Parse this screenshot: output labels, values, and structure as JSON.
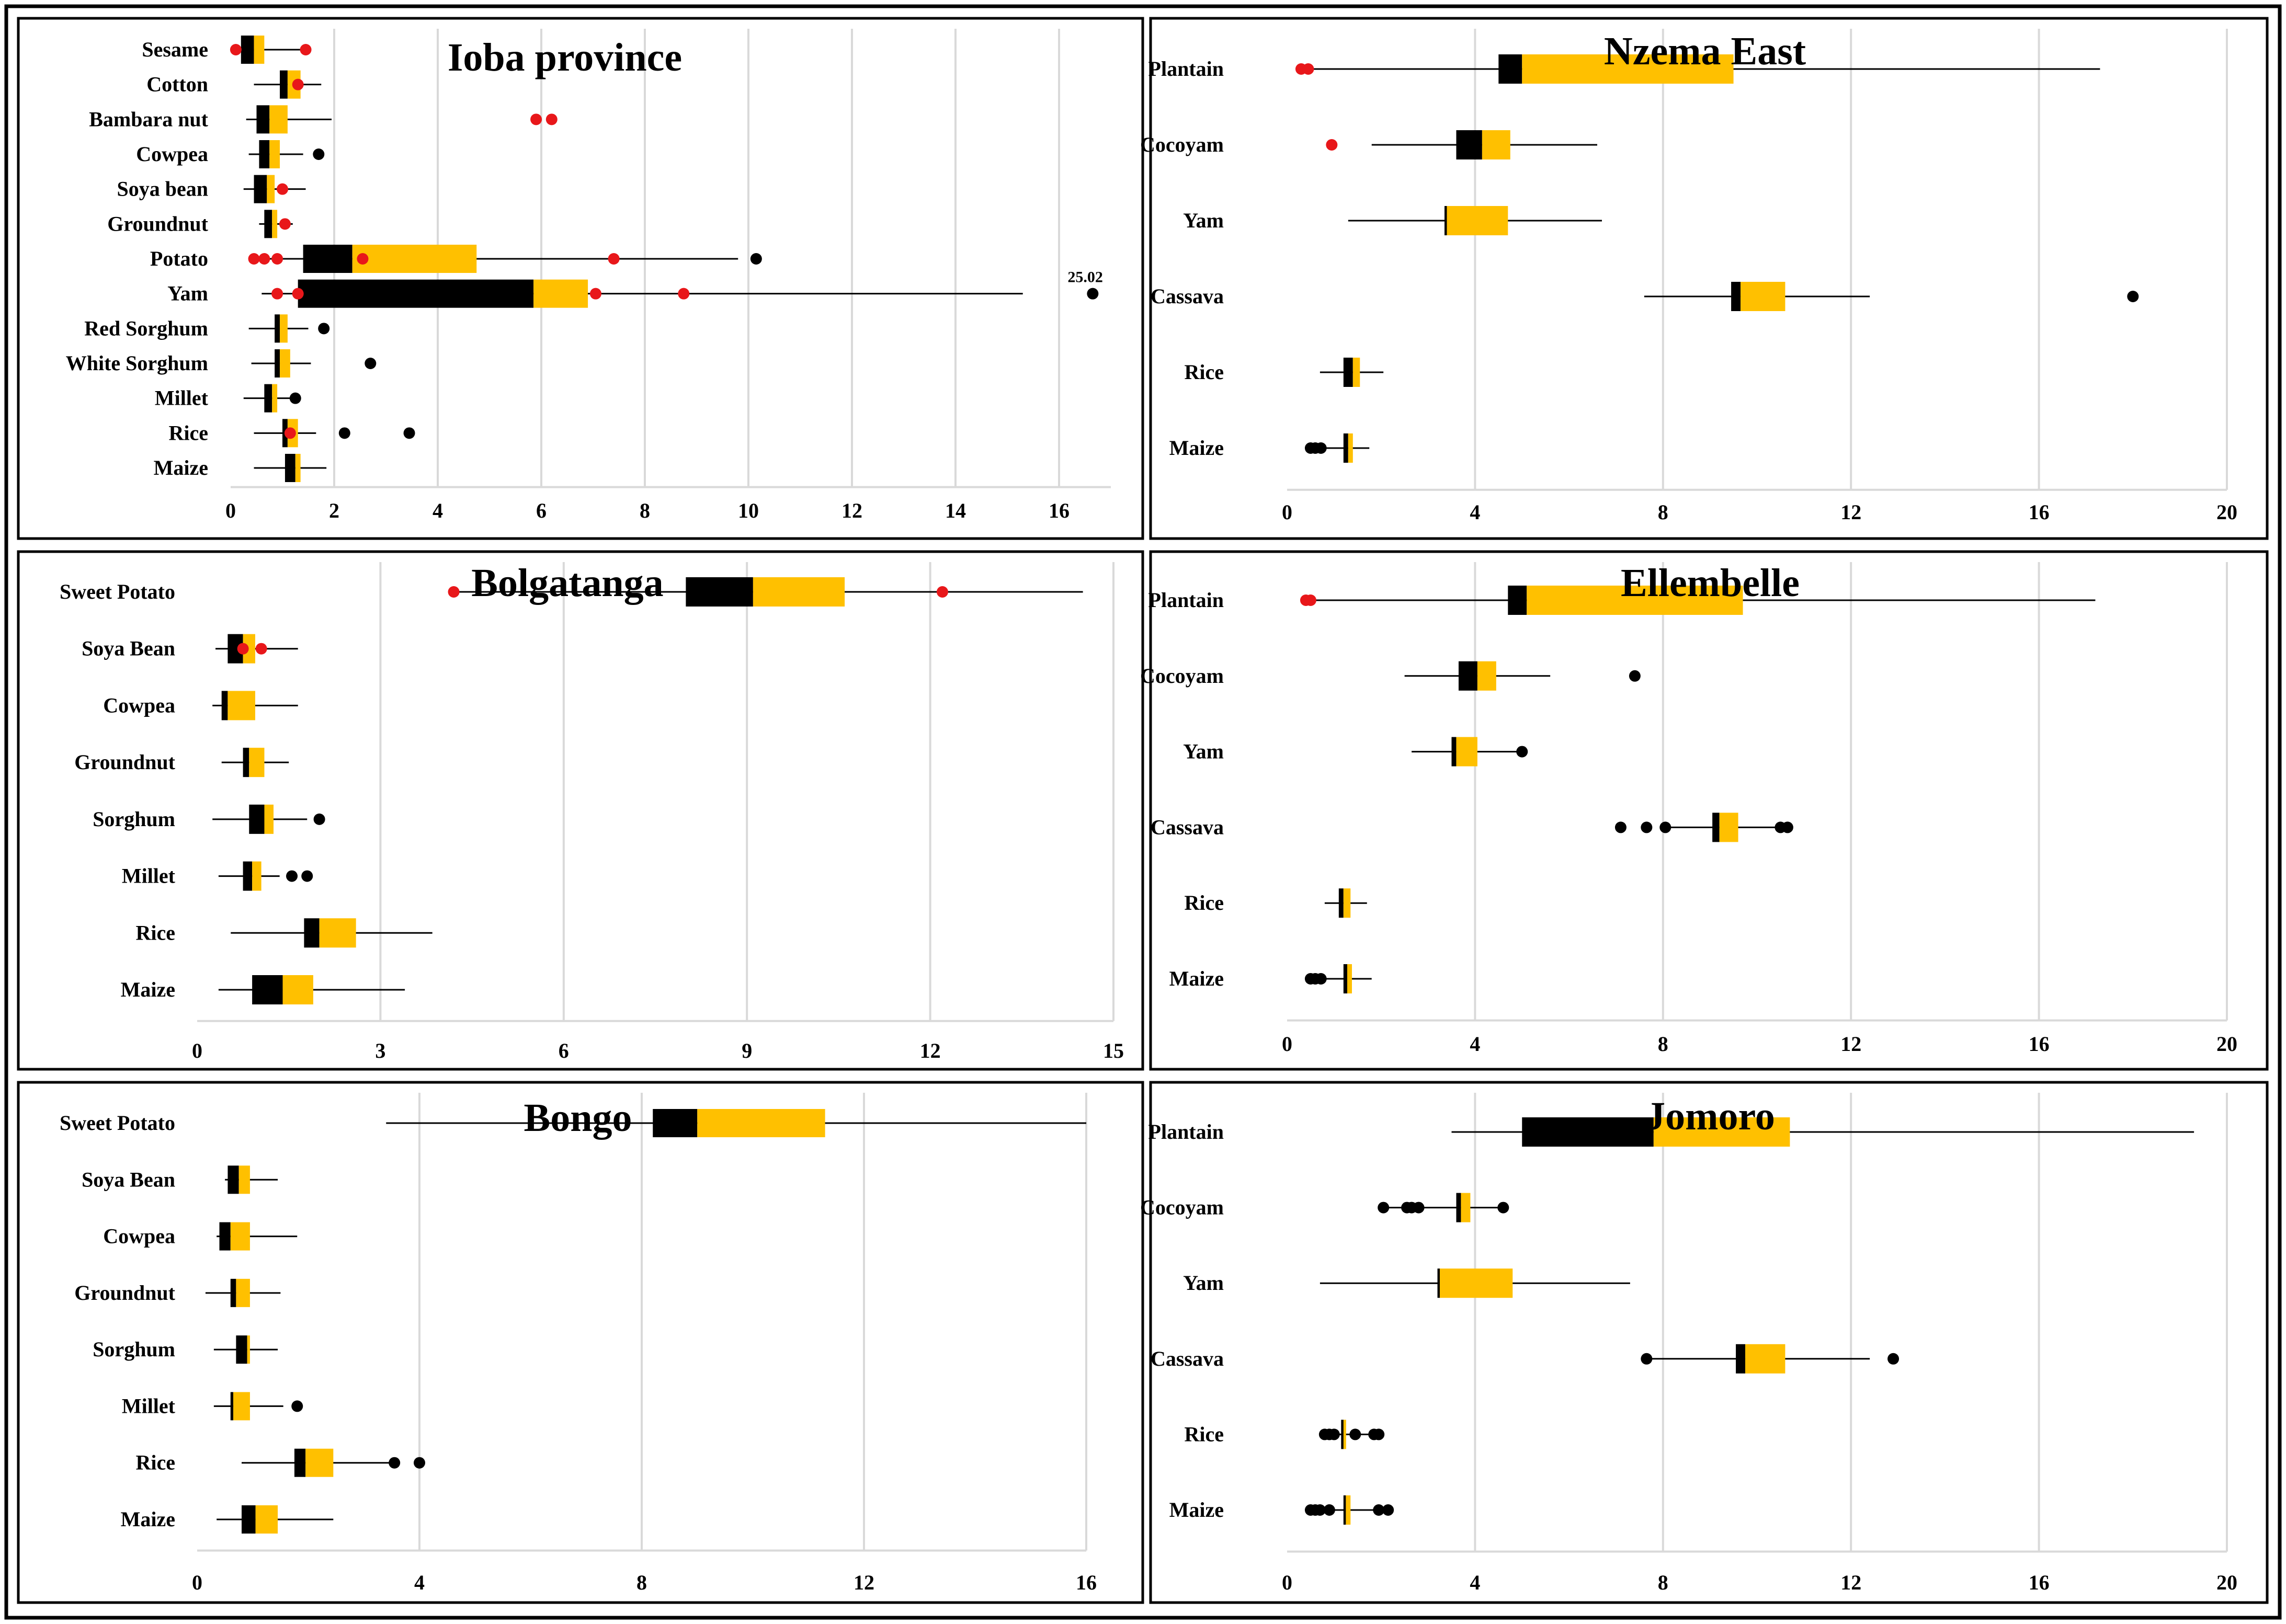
{
  "colors": {
    "q1": "#000000",
    "q2": "#FFC000",
    "whisker": "#000000",
    "outlier_black": "#000000",
    "outlier_red": "#E8171A",
    "grid": "#D9D9D9",
    "border": "#000000"
  },
  "chart_data": [
    {
      "type": "boxplot",
      "title": "Ioba province",
      "xlim": [
        0,
        17
      ],
      "ticks": [
        0,
        2,
        4,
        6,
        8,
        10,
        12,
        14,
        16
      ],
      "tick_labels": [
        "0",
        "2",
        "4",
        "6",
        "8",
        "10",
        "12",
        "14",
        "16"
      ],
      "categories": [
        {
          "name": "Sesame",
          "min": 0.2,
          "q1": 0.2,
          "median": 0.45,
          "q3": 0.65,
          "max": 1.45,
          "outliers": [
            {
              "v": 0.1,
              "c": "red"
            },
            {
              "v": 1.45,
              "c": "red"
            }
          ]
        },
        {
          "name": "Cotton",
          "min": 0.45,
          "q1": 0.95,
          "median": 1.1,
          "q3": 1.35,
          "max": 1.75,
          "outliers": [
            {
              "v": 1.3,
              "c": "red"
            }
          ]
        },
        {
          "name": "Bambara nut",
          "min": 0.3,
          "q1": 0.5,
          "median": 0.75,
          "q3": 1.1,
          "max": 1.95,
          "outliers": [
            {
              "v": 5.9,
              "c": "red"
            },
            {
              "v": 6.2,
              "c": "red"
            }
          ]
        },
        {
          "name": "Cowpea",
          "min": 0.35,
          "q1": 0.55,
          "median": 0.75,
          "q3": 0.95,
          "max": 1.4,
          "outliers": [
            {
              "v": 1.7,
              "c": "black"
            }
          ]
        },
        {
          "name": "Soya bean",
          "min": 0.25,
          "q1": 0.45,
          "median": 0.7,
          "q3": 0.85,
          "max": 1.45,
          "outliers": [
            {
              "v": 1.0,
              "c": "red"
            }
          ]
        },
        {
          "name": "Groundnut",
          "min": 0.55,
          "q1": 0.65,
          "median": 0.8,
          "q3": 0.9,
          "max": 1.2,
          "outliers": [
            {
              "v": 1.05,
              "c": "red"
            }
          ]
        },
        {
          "name": "Potato",
          "min": 0.4,
          "q1": 1.4,
          "median": 2.35,
          "q3": 4.75,
          "max": 9.8,
          "outliers": [
            {
              "v": 0.45,
              "c": "red"
            },
            {
              "v": 0.65,
              "c": "red"
            },
            {
              "v": 0.9,
              "c": "red"
            },
            {
              "v": 2.55,
              "c": "red"
            },
            {
              "v": 7.4,
              "c": "red"
            },
            {
              "v": 10.15,
              "c": "black"
            }
          ]
        },
        {
          "name": "Yam",
          "min": 0.6,
          "q1": 1.3,
          "median": 5.85,
          "q3": 6.9,
          "max": 15.3,
          "outliers": [
            {
              "v": 0.9,
              "c": "red"
            },
            {
              "v": 1.3,
              "c": "red"
            },
            {
              "v": 7.05,
              "c": "red"
            },
            {
              "v": 8.75,
              "c": "red"
            },
            {
              "v": 16.65,
              "c": "black"
            }
          ],
          "annotation": "25.02"
        },
        {
          "name": "Red Sorghum",
          "min": 0.35,
          "q1": 0.85,
          "median": 0.95,
          "q3": 1.1,
          "max": 1.5,
          "outliers": [
            {
              "v": 1.8,
              "c": "black"
            }
          ]
        },
        {
          "name": "White Sorghum",
          "min": 0.4,
          "q1": 0.85,
          "median": 0.95,
          "q3": 1.15,
          "max": 1.55,
          "outliers": [
            {
              "v": 2.7,
              "c": "black"
            }
          ]
        },
        {
          "name": "Millet",
          "min": 0.25,
          "q1": 0.65,
          "median": 0.8,
          "q3": 0.9,
          "max": 1.2,
          "outliers": [
            {
              "v": 1.25,
              "c": "black"
            }
          ]
        },
        {
          "name": "Rice",
          "min": 0.45,
          "q1": 1.0,
          "median": 1.1,
          "q3": 1.3,
          "max": 1.65,
          "outliers": [
            {
              "v": 1.15,
              "c": "red"
            },
            {
              "v": 2.2,
              "c": "black"
            },
            {
              "v": 3.45,
              "c": "black"
            }
          ]
        },
        {
          "name": "Maize",
          "min": 0.45,
          "q1": 1.05,
          "median": 1.25,
          "q3": 1.35,
          "max": 1.85,
          "outliers": []
        }
      ]
    },
    {
      "type": "boxplot",
      "title": "Nzema East",
      "xlim": [
        0,
        20
      ],
      "ticks": [
        0,
        4,
        8,
        12,
        16,
        20
      ],
      "tick_labels": [
        "0",
        "4",
        "8",
        "12",
        "16",
        "20"
      ],
      "categories": [
        {
          "name": "Plantain",
          "min": 0.4,
          "q1": 4.5,
          "median": 5.0,
          "q3": 9.5,
          "max": 17.3,
          "outliers": [
            {
              "v": 0.3,
              "c": "red"
            },
            {
              "v": 0.45,
              "c": "red"
            }
          ]
        },
        {
          "name": "Cocoyam",
          "min": 1.8,
          "q1": 3.6,
          "median": 4.15,
          "q3": 4.75,
          "max": 6.6,
          "outliers": [
            {
              "v": 0.95,
              "c": "red"
            }
          ]
        },
        {
          "name": "Yam",
          "min": 1.3,
          "q1": 3.35,
          "median": 3.4,
          "q3": 4.7,
          "max": 6.7,
          "outliers": []
        },
        {
          "name": "Cassava",
          "min": 7.6,
          "q1": 9.45,
          "median": 9.65,
          "q3": 10.6,
          "max": 12.4,
          "outliers": [
            {
              "v": 18.0,
              "c": "black"
            }
          ]
        },
        {
          "name": "Rice",
          "min": 0.7,
          "q1": 1.2,
          "median": 1.4,
          "q3": 1.55,
          "max": 2.05,
          "outliers": []
        },
        {
          "name": "Maize",
          "min": 0.5,
          "q1": 1.2,
          "median": 1.3,
          "q3": 1.4,
          "max": 1.75,
          "outliers": [
            {
              "v": 0.5,
              "c": "black"
            },
            {
              "v": 0.6,
              "c": "black"
            },
            {
              "v": 0.72,
              "c": "black"
            }
          ]
        }
      ]
    },
    {
      "type": "boxplot",
      "title": "Bolgatanga",
      "xlim": [
        0,
        15
      ],
      "ticks": [
        0,
        3,
        6,
        9,
        12,
        15
      ],
      "tick_labels": [
        "0",
        "3",
        "6",
        "9",
        "12",
        "15"
      ],
      "categories": [
        {
          "name": "Sweet Potato",
          "min": 4.2,
          "q1": 8.0,
          "median": 9.1,
          "q3": 10.6,
          "max": 14.5,
          "outliers": [
            {
              "v": 4.2,
              "c": "red"
            },
            {
              "v": 12.2,
              "c": "red"
            }
          ]
        },
        {
          "name": "Soya Bean",
          "min": 0.3,
          "q1": 0.5,
          "median": 0.75,
          "q3": 0.95,
          "max": 1.65,
          "outliers": [
            {
              "v": 0.75,
              "c": "red"
            },
            {
              "v": 1.05,
              "c": "red"
            }
          ]
        },
        {
          "name": "Cowpea",
          "min": 0.25,
          "q1": 0.4,
          "median": 0.5,
          "q3": 0.95,
          "max": 1.65,
          "outliers": []
        },
        {
          "name": "Groundnut",
          "min": 0.4,
          "q1": 0.75,
          "median": 0.85,
          "q3": 1.1,
          "max": 1.5,
          "outliers": []
        },
        {
          "name": "Sorghum",
          "min": 0.25,
          "q1": 0.85,
          "median": 1.1,
          "q3": 1.25,
          "max": 1.8,
          "outliers": [
            {
              "v": 2.0,
              "c": "black"
            }
          ]
        },
        {
          "name": "Millet",
          "min": 0.35,
          "q1": 0.75,
          "median": 0.9,
          "q3": 1.05,
          "max": 1.35,
          "outliers": [
            {
              "v": 1.55,
              "c": "black"
            },
            {
              "v": 1.8,
              "c": "black"
            }
          ]
        },
        {
          "name": "Rice",
          "min": 0.55,
          "q1": 1.75,
          "median": 2.0,
          "q3": 2.6,
          "max": 3.85,
          "outliers": []
        },
        {
          "name": "Maize",
          "min": 0.35,
          "q1": 0.9,
          "median": 1.4,
          "q3": 1.9,
          "max": 3.4,
          "outliers": []
        }
      ]
    },
    {
      "type": "boxplot",
      "title": "Ellembelle",
      "xlim": [
        0,
        20
      ],
      "ticks": [
        0,
        4,
        8,
        12,
        16,
        20
      ],
      "tick_labels": [
        "0",
        "4",
        "8",
        "12",
        "16",
        "20"
      ],
      "categories": [
        {
          "name": "Plantain",
          "min": 0.5,
          "q1": 4.7,
          "median": 5.1,
          "q3": 9.7,
          "max": 17.2,
          "outliers": [
            {
              "v": 0.4,
              "c": "red"
            },
            {
              "v": 0.5,
              "c": "red"
            }
          ]
        },
        {
          "name": "Cocoyam",
          "min": 2.5,
          "q1": 3.65,
          "median": 4.05,
          "q3": 4.45,
          "max": 5.6,
          "outliers": [
            {
              "v": 7.4,
              "c": "black"
            }
          ]
        },
        {
          "name": "Yam",
          "min": 2.65,
          "q1": 3.5,
          "median": 3.6,
          "q3": 4.05,
          "max": 4.9,
          "outliers": [
            {
              "v": 5.0,
              "c": "black"
            }
          ]
        },
        {
          "name": "Cassava",
          "min": 8.1,
          "q1": 9.05,
          "median": 9.2,
          "q3": 9.6,
          "max": 10.4,
          "outliers": [
            {
              "v": 7.1,
              "c": "black"
            },
            {
              "v": 7.65,
              "c": "black"
            },
            {
              "v": 8.05,
              "c": "black"
            },
            {
              "v": 10.5,
              "c": "black"
            },
            {
              "v": 10.65,
              "c": "black"
            }
          ]
        },
        {
          "name": "Rice",
          "min": 0.8,
          "q1": 1.1,
          "median": 1.2,
          "q3": 1.35,
          "max": 1.7,
          "outliers": []
        },
        {
          "name": "Maize",
          "min": 0.6,
          "q1": 1.2,
          "median": 1.28,
          "q3": 1.38,
          "max": 1.8,
          "outliers": [
            {
              "v": 0.5,
              "c": "black"
            },
            {
              "v": 0.6,
              "c": "black"
            },
            {
              "v": 0.72,
              "c": "black"
            }
          ]
        }
      ]
    },
    {
      "type": "boxplot",
      "title": "Bongo",
      "xlim": [
        0,
        16
      ],
      "ticks": [
        0,
        4,
        8,
        12,
        16
      ],
      "tick_labels": [
        "0",
        "4",
        "8",
        "12",
        "16"
      ],
      "categories": [
        {
          "name": "Sweet Potato",
          "min": 3.4,
          "q1": 8.2,
          "median": 9.0,
          "q3": 11.3,
          "max": 16.0,
          "outliers": []
        },
        {
          "name": "Soya Bean",
          "min": 0.5,
          "q1": 0.55,
          "median": 0.75,
          "q3": 0.95,
          "max": 1.45,
          "outliers": []
        },
        {
          "name": "Cowpea",
          "min": 0.35,
          "q1": 0.4,
          "median": 0.6,
          "q3": 0.95,
          "max": 1.8,
          "outliers": []
        },
        {
          "name": "Groundnut",
          "min": 0.15,
          "q1": 0.6,
          "median": 0.7,
          "q3": 0.95,
          "max": 1.5,
          "outliers": []
        },
        {
          "name": "Sorghum",
          "min": 0.3,
          "q1": 0.7,
          "median": 0.9,
          "q3": 0.95,
          "max": 1.45,
          "outliers": []
        },
        {
          "name": "Millet",
          "min": 0.3,
          "q1": 0.6,
          "median": 0.65,
          "q3": 0.95,
          "max": 1.55,
          "outliers": [
            {
              "v": 1.8,
              "c": "black"
            }
          ]
        },
        {
          "name": "Rice",
          "min": 0.8,
          "q1": 1.75,
          "median": 1.95,
          "q3": 2.45,
          "max": 3.55,
          "outliers": [
            {
              "v": 3.55,
              "c": "black"
            },
            {
              "v": 4.0,
              "c": "black"
            }
          ]
        },
        {
          "name": "Maize",
          "min": 0.35,
          "q1": 0.8,
          "median": 1.05,
          "q3": 1.45,
          "max": 2.45,
          "outliers": []
        }
      ]
    },
    {
      "type": "boxplot",
      "title": "Jomoro",
      "xlim": [
        0,
        20
      ],
      "ticks": [
        0,
        4,
        8,
        12,
        16,
        20
      ],
      "tick_labels": [
        "0",
        "4",
        "8",
        "12",
        "16",
        "20"
      ],
      "categories": [
        {
          "name": "Plantain",
          "min": 3.5,
          "q1": 5.0,
          "median": 7.8,
          "q3": 10.7,
          "max": 19.3,
          "outliers": []
        },
        {
          "name": "Cocoyam",
          "min": 2.05,
          "q1": 3.6,
          "median": 3.7,
          "q3": 3.9,
          "max": 4.6,
          "outliers": [
            {
              "v": 2.05,
              "c": "black"
            },
            {
              "v": 2.55,
              "c": "black"
            },
            {
              "v": 2.65,
              "c": "black"
            },
            {
              "v": 2.8,
              "c": "black"
            },
            {
              "v": 4.6,
              "c": "black"
            }
          ]
        },
        {
          "name": "Yam",
          "min": 0.7,
          "q1": 3.2,
          "median": 3.25,
          "q3": 4.8,
          "max": 7.3,
          "outliers": []
        },
        {
          "name": "Cassava",
          "min": 7.65,
          "q1": 9.55,
          "median": 9.75,
          "q3": 10.6,
          "max": 12.4,
          "outliers": [
            {
              "v": 7.65,
              "c": "black"
            },
            {
              "v": 12.9,
              "c": "black"
            }
          ]
        },
        {
          "name": "Rice",
          "min": 0.8,
          "q1": 1.15,
          "median": 1.2,
          "q3": 1.25,
          "max": 1.9,
          "outliers": [
            {
              "v": 0.8,
              "c": "black"
            },
            {
              "v": 0.9,
              "c": "black"
            },
            {
              "v": 1.0,
              "c": "black"
            },
            {
              "v": 1.45,
              "c": "black"
            },
            {
              "v": 1.85,
              "c": "black"
            },
            {
              "v": 1.95,
              "c": "black"
            }
          ]
        },
        {
          "name": "Maize",
          "min": 0.45,
          "q1": 1.2,
          "median": 1.25,
          "q3": 1.35,
          "max": 2.15,
          "outliers": [
            {
              "v": 0.5,
              "c": "black"
            },
            {
              "v": 0.6,
              "c": "black"
            },
            {
              "v": 0.7,
              "c": "black"
            },
            {
              "v": 0.9,
              "c": "black"
            },
            {
              "v": 1.95,
              "c": "black"
            },
            {
              "v": 2.15,
              "c": "black"
            }
          ]
        }
      ]
    }
  ]
}
